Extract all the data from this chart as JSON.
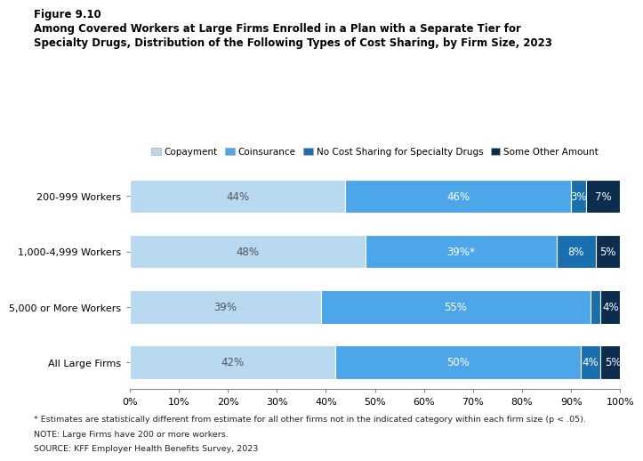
{
  "title_line1": "Figure 9.10",
  "title_line2": "Among Covered Workers at Large Firms Enrolled in a Plan with a Separate Tier for\nSpecialty Drugs, Distribution of the Following Types of Cost Sharing, by Firm Size, 2023",
  "categories": [
    "200-999 Workers",
    "1,000-4,999 Workers",
    "5,000 or More Workers",
    "All Large Firms"
  ],
  "series": {
    "Copayment": [
      44,
      48,
      39,
      42
    ],
    "Coinsurance": [
      46,
      39,
      55,
      50
    ],
    "No Cost Sharing for Specialty Drugs": [
      3,
      8,
      2,
      4
    ],
    "Some Other Amount": [
      7,
      5,
      4,
      5
    ]
  },
  "labels": {
    "Copayment": [
      "44%",
      "48%",
      "39%",
      "42%"
    ],
    "Coinsurance": [
      "46%",
      "39%*",
      "55%",
      "50%"
    ],
    "No Cost Sharing for Specialty Drugs": [
      "3%",
      "8%",
      "",
      "4%"
    ],
    "Some Other Amount": [
      "7%",
      "5%",
      "4%",
      "5%"
    ]
  },
  "colors": {
    "Copayment": "#b8d9f0",
    "Coinsurance": "#4da6e8",
    "No Cost Sharing for Specialty Drugs": "#1a6faf",
    "Some Other Amount": "#0d2d4f"
  },
  "xlim": [
    0,
    100
  ],
  "xticks": [
    0,
    10,
    20,
    30,
    40,
    50,
    60,
    70,
    80,
    90,
    100
  ],
  "xtick_labels": [
    "0%",
    "10%",
    "20%",
    "30%",
    "40%",
    "50%",
    "60%",
    "70%",
    "80%",
    "90%",
    "100%"
  ],
  "footnote1": "* Estimates are statistically different from estimate for all other firms not in the indicated category within each firm size (p < .05).",
  "footnote2": "NOTE: Large Firms have 200 or more workers.",
  "footnote3": "SOURCE: KFF Employer Health Benefits Survey, 2023",
  "bar_height": 0.6,
  "label_fontsize": 8.5,
  "tick_fontsize": 8,
  "legend_fontsize": 7.5,
  "footnote_fontsize": 6.8,
  "title1_fontsize": 8.5,
  "title2_fontsize": 8.5
}
